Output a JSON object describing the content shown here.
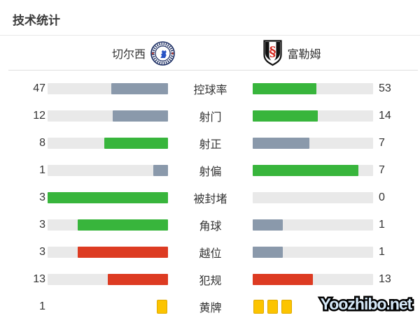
{
  "title": "技术统计",
  "teams": {
    "home": {
      "name": "切尔西"
    },
    "away": {
      "name": "富勒姆"
    }
  },
  "watermark": "Yoozhibo.net",
  "colors": {
    "green": "#38b53c",
    "gray": "#8a99ab",
    "red": "#dd3b22",
    "track": "#e9e9e9",
    "yellow": "#fcc400",
    "chelsea_navy": "#14275e",
    "fulham_red": "#d6281e"
  },
  "chart_data": {
    "type": "bar",
    "title": "技术统计",
    "categories": [
      "控球率",
      "射门",
      "射正",
      "射偏",
      "被封堵",
      "角球",
      "越位",
      "犯规",
      "黄牌"
    ],
    "series": [
      {
        "name": "切尔西",
        "values": [
          47,
          12,
          8,
          1,
          3,
          3,
          3,
          13,
          1
        ]
      },
      {
        "name": "富勒姆",
        "values": [
          53,
          14,
          7,
          7,
          0,
          1,
          1,
          13,
          3
        ]
      }
    ],
    "legend_position": "top",
    "grid": false,
    "note": "paired horizontal bars, fill fraction = value / (home+away); green = better, gray = worse, red = negative stat leader, yellow card glyphs for 黄牌"
  },
  "rows": [
    {
      "type": "bar",
      "label": "控球率",
      "home": {
        "value": "47",
        "pct": 47,
        "color": "gray"
      },
      "away": {
        "value": "53",
        "pct": 53,
        "color": "green"
      }
    },
    {
      "type": "bar",
      "label": "射门",
      "home": {
        "value": "12",
        "pct": 46,
        "color": "gray"
      },
      "away": {
        "value": "14",
        "pct": 54,
        "color": "green"
      }
    },
    {
      "type": "bar",
      "label": "射正",
      "home": {
        "value": "8",
        "pct": 53,
        "color": "green"
      },
      "away": {
        "value": "7",
        "pct": 47,
        "color": "gray"
      }
    },
    {
      "type": "bar",
      "label": "射偏",
      "home": {
        "value": "1",
        "pct": 12.5,
        "color": "gray"
      },
      "away": {
        "value": "7",
        "pct": 87.5,
        "color": "green"
      }
    },
    {
      "type": "bar",
      "label": "被封堵",
      "home": {
        "value": "3",
        "pct": 100,
        "color": "green"
      },
      "away": {
        "value": "0",
        "pct": 0,
        "color": "gray"
      }
    },
    {
      "type": "bar",
      "label": "角球",
      "home": {
        "value": "3",
        "pct": 75,
        "color": "green"
      },
      "away": {
        "value": "1",
        "pct": 25,
        "color": "gray"
      }
    },
    {
      "type": "bar",
      "label": "越位",
      "home": {
        "value": "3",
        "pct": 75,
        "color": "red"
      },
      "away": {
        "value": "1",
        "pct": 25,
        "color": "gray"
      }
    },
    {
      "type": "bar",
      "label": "犯规",
      "home": {
        "value": "13",
        "pct": 50,
        "color": "red"
      },
      "away": {
        "value": "13",
        "pct": 50,
        "color": "red"
      }
    },
    {
      "type": "cards",
      "label": "黄牌",
      "home": {
        "value": "1",
        "cards": 1
      },
      "away": {
        "value": "3",
        "cards": 3
      }
    }
  ]
}
